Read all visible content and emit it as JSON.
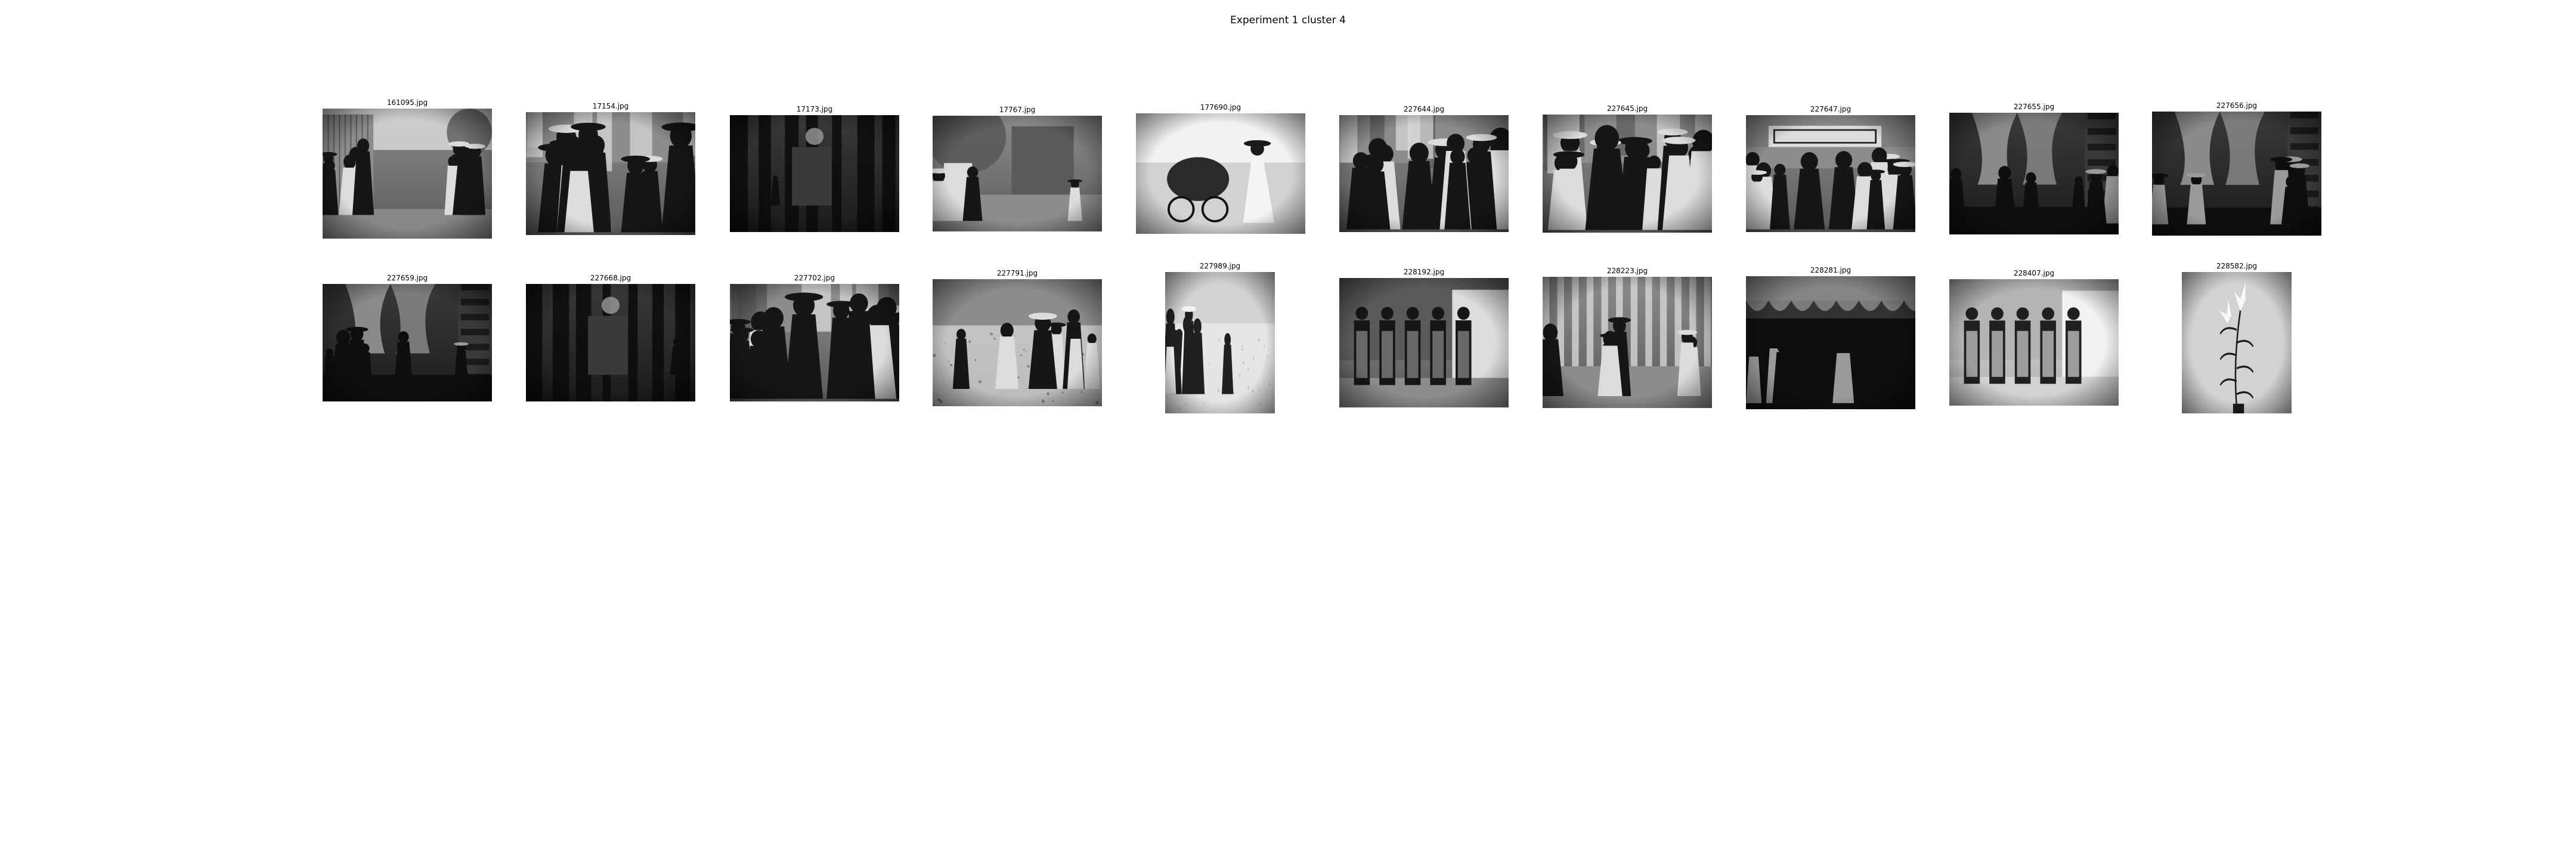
{
  "figure": {
    "title": "Experiment 1 cluster 4"
  },
  "images": [
    {
      "name": "161095.jpg",
      "scene": "outdoor-market",
      "tone": "mid"
    },
    {
      "name": "17154.jpg",
      "scene": "crowd",
      "tone": "mid"
    },
    {
      "name": "17173.jpg",
      "scene": "dark-stall",
      "tone": "dark"
    },
    {
      "name": "17767.jpg",
      "scene": "garden-gate",
      "tone": "mid"
    },
    {
      "name": "177690.jpg",
      "scene": "woman-carriage",
      "tone": "light"
    },
    {
      "name": "227644.jpg",
      "scene": "crowd",
      "tone": "mid"
    },
    {
      "name": "227645.jpg",
      "scene": "crowd",
      "tone": "mid"
    },
    {
      "name": "227647.jpg",
      "scene": "signboard-crowd",
      "tone": "mid"
    },
    {
      "name": "227655.jpg",
      "scene": "interior-curtain",
      "tone": "dark"
    },
    {
      "name": "227656.jpg",
      "scene": "interior-curtain",
      "tone": "dark"
    },
    {
      "name": "227659.jpg",
      "scene": "interior-curtain",
      "tone": "dark"
    },
    {
      "name": "227668.jpg",
      "scene": "dark-stall",
      "tone": "dark"
    },
    {
      "name": "227702.jpg",
      "scene": "crowd",
      "tone": "mid"
    },
    {
      "name": "227791.jpg",
      "scene": "street-ground",
      "tone": "mid"
    },
    {
      "name": "227989.jpg",
      "scene": "street-ground",
      "tone": "light"
    },
    {
      "name": "228192.jpg",
      "scene": "standing-men",
      "tone": "mid"
    },
    {
      "name": "228223.jpg",
      "scene": "striped-tent",
      "tone": "mid"
    },
    {
      "name": "228281.jpg",
      "scene": "canopy",
      "tone": "dark"
    },
    {
      "name": "228407.jpg",
      "scene": "standing-men",
      "tone": "light"
    },
    {
      "name": "228582.jpg",
      "scene": "lily-flower",
      "tone": "light"
    }
  ]
}
